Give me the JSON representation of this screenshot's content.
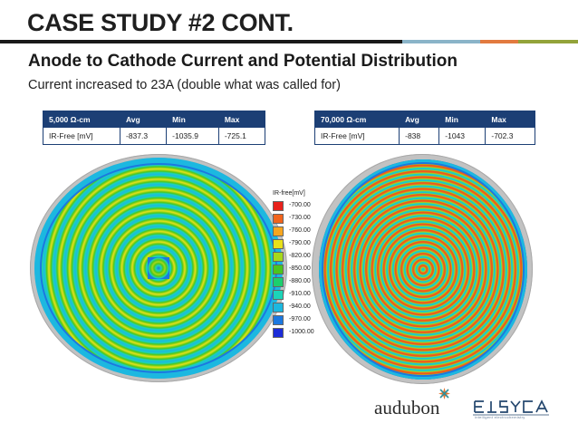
{
  "slide": {
    "title": "CASE STUDY #2 CONT.",
    "subtitle": "Anode to Cathode Current and Potential Distribution",
    "note": "Current increased to 23A (double what was called for)",
    "accent_colors": [
      "#1a1a1a",
      "#8ab4c8",
      "#e27a3f",
      "#93a33a"
    ]
  },
  "table_left": {
    "header": [
      "5,000 Ω-cm",
      "Avg",
      "Min",
      "Max"
    ],
    "row": [
      "IR-Free [mV]",
      "-837.3",
      "-1035.9",
      "-725.1"
    ]
  },
  "table_right": {
    "header": [
      "70,000 Ω-cm",
      "Avg",
      "Min",
      "Max"
    ],
    "row": [
      "IR-Free [mV]",
      "-838",
      "-1043",
      "-702.3"
    ]
  },
  "legend": {
    "title": "IR-free[mV]",
    "items": [
      {
        "label": "-700.00",
        "color": "#e8221c"
      },
      {
        "label": "-730.00",
        "color": "#f2641c"
      },
      {
        "label": "-760.00",
        "color": "#f7a51e"
      },
      {
        "label": "-790.00",
        "color": "#e8e01a"
      },
      {
        "label": "-820.00",
        "color": "#a6d81a"
      },
      {
        "label": "-850.00",
        "color": "#4cc61c"
      },
      {
        "label": "-880.00",
        "color": "#1ccf6e"
      },
      {
        "label": "-910.00",
        "color": "#1cd4b8"
      },
      {
        "label": "-940.00",
        "color": "#1cb8e0"
      },
      {
        "label": "-970.00",
        "color": "#1c78e0"
      },
      {
        "label": "-1000.00",
        "color": "#1c2cd8"
      }
    ]
  },
  "logos": {
    "audubon": "audubon",
    "elsyca_tagline": "intelligent electrochemistry"
  }
}
